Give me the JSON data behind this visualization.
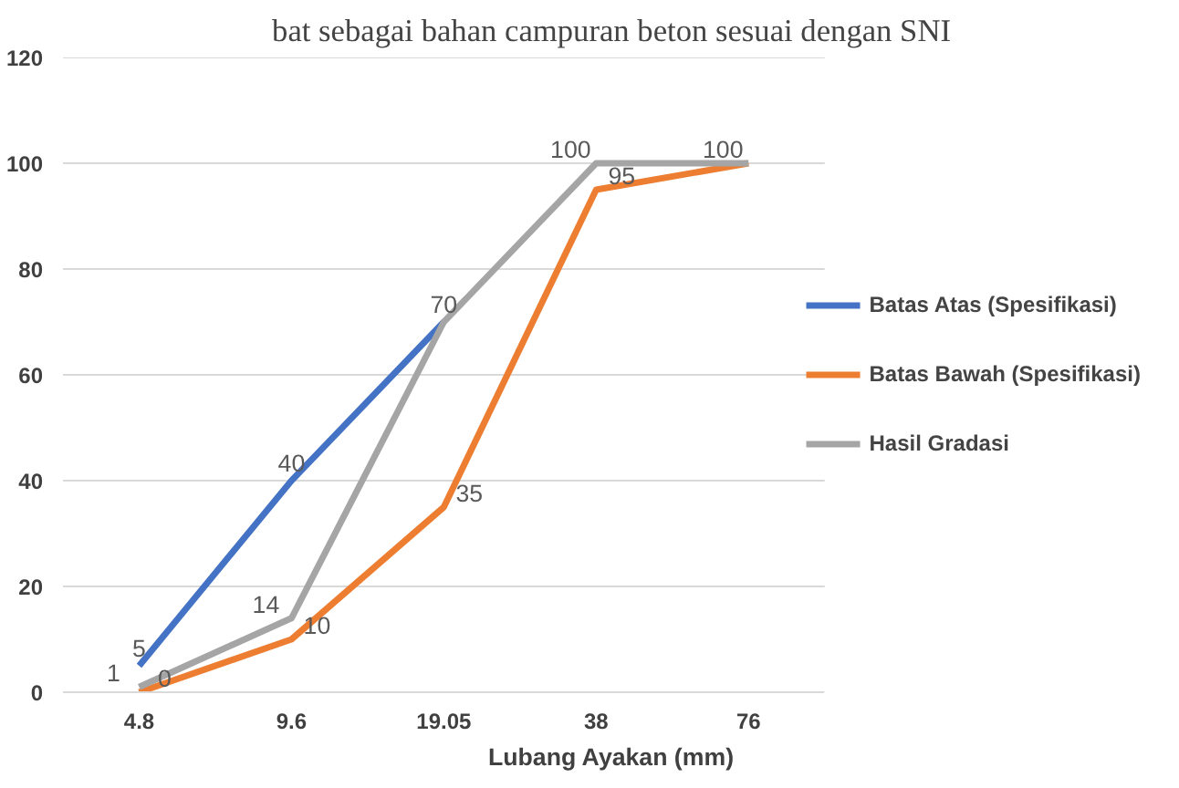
{
  "chart_data": {
    "type": "line",
    "xlabel": "Lubang Ayakan (mm)",
    "categories": [
      "4.8",
      "9.6",
      "19.05",
      "38",
      "76"
    ],
    "series": [
      {
        "name": "Batas Atas (Spesifikasi)",
        "color": "#4472c4",
        "values": [
          5,
          40,
          70,
          null,
          null
        ],
        "value_labels": [
          "5",
          "40",
          "70",
          null,
          null
        ]
      },
      {
        "name": "Batas Bawah (Spesifikasi)",
        "color": "#ed7d31",
        "values": [
          0,
          10,
          35,
          95,
          100
        ],
        "value_labels": [
          "0",
          "10",
          "35",
          "95",
          null
        ]
      },
      {
        "name": "Hasil Gradasi",
        "color": "#a5a5a5",
        "values": [
          1,
          14,
          70,
          100,
          100
        ],
        "value_labels": [
          "1",
          "14",
          null,
          "100",
          "100"
        ]
      }
    ],
    "ylim": [
      0,
      120
    ],
    "yticks": [
      0,
      20,
      40,
      60,
      80,
      100,
      120
    ],
    "grid": "y",
    "legend": "right",
    "data_labels": true,
    "marker": "none",
    "line_style": "solid",
    "annotations": [
      "bat sebagai bahan campuran beton sesuai dengan SNI"
    ]
  }
}
